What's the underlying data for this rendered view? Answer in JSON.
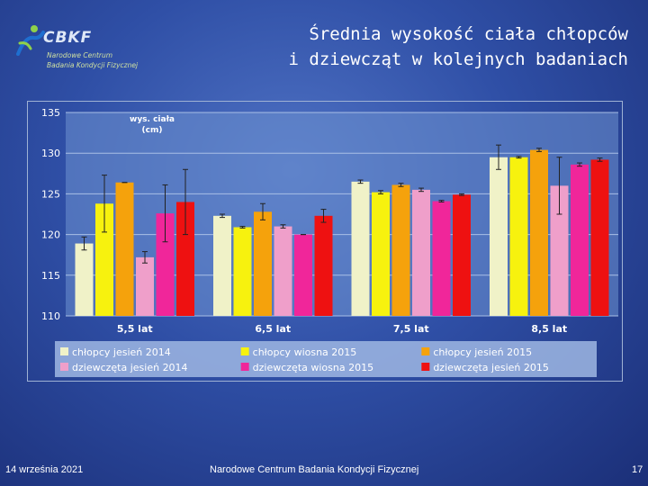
{
  "logo": {
    "name": "CBKF",
    "subtitle_line1": "Narodowe Centrum",
    "subtitle_line2": "Badania Kondycji Fizycznej"
  },
  "title": {
    "line1": "Średnia wysokość ciała chłopców",
    "line2": "i dziewcząt w kolejnych badaniach"
  },
  "footer": {
    "date": "14 września 2021",
    "organization": "Narodowe Centrum Badania Kondycji Fizycznej",
    "page": "17"
  },
  "chart_data": {
    "type": "bar",
    "title": "",
    "ylabel": "wys. ciała (cm)",
    "ylabel_lines": [
      "wys. ciała",
      "(cm)"
    ],
    "xlabel": "",
    "ylim": [
      110,
      135
    ],
    "yticks": [
      110,
      115,
      120,
      125,
      130,
      135
    ],
    "grid": true,
    "legend_position": "bottom",
    "categories": [
      "5,5 lat",
      "6,5 lat",
      "7,5 lat",
      "8,5 lat"
    ],
    "series": [
      {
        "name": "chłopcy jesień 2014",
        "color": "#f0f2c8",
        "values": [
          118.9,
          122.3,
          126.5,
          129.5
        ],
        "errors": [
          0.8,
          0.2,
          0.2,
          1.5
        ]
      },
      {
        "name": "chłopcy wiosna 2015",
        "color": "#f7f20e",
        "values": [
          123.8,
          120.9,
          125.2,
          129.5
        ],
        "errors": [
          3.5,
          0.1,
          0.2,
          0.1
        ]
      },
      {
        "name": "chłopcy jesień 2015",
        "color": "#f5a20c",
        "values": [
          126.4,
          122.8,
          126.1,
          130.4
        ],
        "errors": [
          0.0,
          1.0,
          0.2,
          0.2
        ]
      },
      {
        "name": "dziewczęta jesień 2014",
        "color": "#ef9fca",
        "values": [
          117.2,
          121.0,
          125.5,
          126.0
        ],
        "errors": [
          0.7,
          0.2,
          0.2,
          3.5
        ]
      },
      {
        "name": "dziewczęta wiosna 2015",
        "color": "#f0269a",
        "values": [
          122.6,
          120.0,
          124.1,
          128.6
        ],
        "errors": [
          3.5,
          0.0,
          0.1,
          0.2
        ]
      },
      {
        "name": "dziewczęta jesień 2015",
        "color": "#ee1111",
        "values": [
          124.0,
          122.3,
          124.9,
          129.2
        ],
        "errors": [
          4.0,
          0.8,
          0.1,
          0.2
        ]
      }
    ]
  }
}
